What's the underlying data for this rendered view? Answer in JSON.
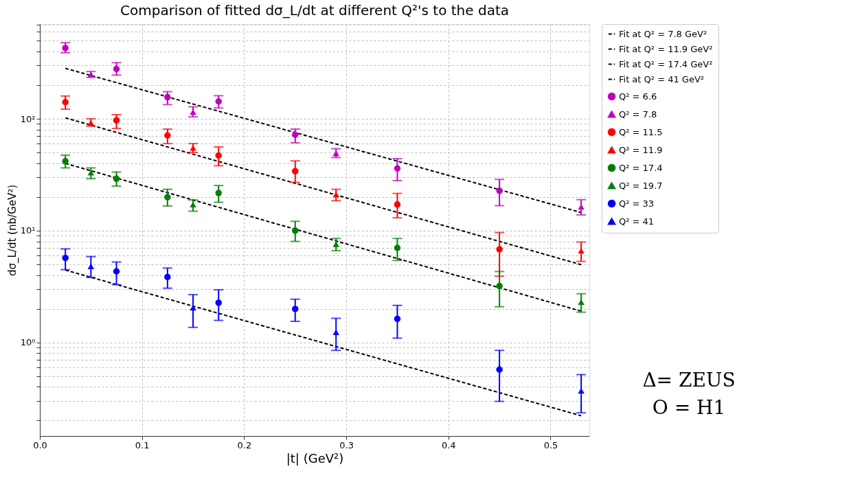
{
  "chart_data": {
    "type": "scatter",
    "title": "Comparison of fitted dσ_L/dt at different Q²'s to the data",
    "xlabel": "|t| (GeV²)",
    "ylabel": "dσ_L/dt (nb/GeV²)",
    "log": "y",
    "grid": true,
    "legend": "right",
    "xlim": [
      0,
      0.538
    ],
    "xticks": [
      {
        "value": 0,
        "label": "0.0"
      },
      {
        "value": 0.1,
        "label": "0.1"
      },
      {
        "value": 0.2,
        "label": "0.2"
      },
      {
        "value": 0.3,
        "label": "0.3"
      },
      {
        "value": 0.4,
        "label": "0.4"
      },
      {
        "value": 0.5,
        "label": "0.5"
      }
    ],
    "ylim": [
      0.145,
      705
    ],
    "yticks": [
      {
        "value": 0.2,
        "label": null
      },
      {
        "value": 0.3,
        "label": null
      },
      {
        "value": 0.4,
        "label": null
      },
      {
        "value": 0.5,
        "label": null
      },
      {
        "value": 0.6,
        "label": null
      },
      {
        "value": 0.7,
        "label": null
      },
      {
        "value": 0.8,
        "label": null
      },
      {
        "value": 0.9,
        "label": null
      },
      {
        "value": 1,
        "label": "10⁰"
      },
      {
        "value": 2,
        "label": null
      },
      {
        "value": 3,
        "label": null
      },
      {
        "value": 4,
        "label": null
      },
      {
        "value": 5,
        "label": null
      },
      {
        "value": 6,
        "label": null
      },
      {
        "value": 7,
        "label": null
      },
      {
        "value": 8,
        "label": null
      },
      {
        "value": 9,
        "label": null
      },
      {
        "value": 10,
        "label": "10¹"
      },
      {
        "value": 20,
        "label": null
      },
      {
        "value": 30,
        "label": null
      },
      {
        "value": 40,
        "label": null
      },
      {
        "value": 50,
        "label": null
      },
      {
        "value": 60,
        "label": null
      },
      {
        "value": 70,
        "label": null
      },
      {
        "value": 80,
        "label": null
      },
      {
        "value": 90,
        "label": null
      },
      {
        "value": 100,
        "label": "10²"
      },
      {
        "value": 200,
        "label": null
      },
      {
        "value": 300,
        "label": null
      },
      {
        "value": 400,
        "label": null
      },
      {
        "value": 500,
        "label": null
      },
      {
        "value": 600,
        "label": null
      },
      {
        "value": 700,
        "label": null
      }
    ],
    "annotations": [
      "Δ= ZEUS",
      "O = H1"
    ],
    "series": [
      {
        "name": "Fit at Q² = 7.8 GeV²",
        "type": "line",
        "line_style": "dashed",
        "color": "#000000",
        "x": [
          0.025,
          0.53
        ],
        "values": [
          283,
          14.5
        ]
      },
      {
        "name": "Fit at Q² = 11.9 GeV²",
        "type": "line",
        "line_style": "dashed",
        "color": "#000000",
        "x": [
          0.025,
          0.53
        ],
        "values": [
          102,
          4.95
        ]
      },
      {
        "name": "Fit at Q² = 17.4 GeV²",
        "type": "line",
        "line_style": "dashed",
        "color": "#000000",
        "x": [
          0.025,
          0.53
        ],
        "values": [
          39.9,
          1.9
        ]
      },
      {
        "name": "Fit at Q² = 41 GeV²",
        "type": "line",
        "line_style": "dashed",
        "color": "#000000",
        "x": [
          0.025,
          0.53
        ],
        "values": [
          4.43,
          0.22
        ]
      },
      {
        "name": "Q² = 6.6",
        "marker": "circle",
        "color": "#bf00bf",
        "x": [
          0.025,
          0.075,
          0.125,
          0.175,
          0.25,
          0.35,
          0.45
        ],
        "values": [
          430,
          279,
          156,
          143,
          72,
          36,
          22.7
        ],
        "errors": [
          [
            390,
            480
          ],
          [
            246,
            318
          ],
          [
            134,
            175
          ],
          [
            125,
            161
          ],
          [
            61,
            81
          ],
          [
            28,
            44
          ],
          [
            16.7,
            28.7
          ]
        ]
      },
      {
        "name": "Q² = 7.8",
        "marker": "triangle",
        "color": "#bf00bf",
        "x": [
          0.05,
          0.15,
          0.29,
          0.53
        ],
        "values": [
          250,
          115,
          49,
          16.3
        ],
        "errors": [
          [
            235,
            265
          ],
          [
            104,
            128
          ],
          [
            45,
            54
          ],
          [
            13.8,
            18.9
          ]
        ]
      },
      {
        "name": "Q² = 11.5",
        "marker": "circle",
        "color": "#ff0000",
        "x": [
          0.025,
          0.075,
          0.125,
          0.175,
          0.25,
          0.35,
          0.45
        ],
        "values": [
          141,
          97,
          71,
          47,
          34,
          17.1,
          6.8
        ],
        "errors": [
          [
            122,
            160
          ],
          [
            82,
            109
          ],
          [
            60,
            81
          ],
          [
            38,
            56
          ],
          [
            27,
            42
          ],
          [
            13,
            21.5
          ],
          [
            3.9,
            9.6
          ]
        ]
      },
      {
        "name": "Q² = 11.9",
        "marker": "triangle",
        "color": "#ff0000",
        "x": [
          0.05,
          0.15,
          0.29,
          0.53
        ],
        "values": [
          92,
          55,
          21,
          6.6
        ],
        "errors": [
          [
            86,
            100
          ],
          [
            50,
            60
          ],
          [
            18.5,
            23.4
          ],
          [
            5.3,
            7.9
          ]
        ]
      },
      {
        "name": "Q² = 17.4",
        "marker": "circle",
        "color": "#008000",
        "x": [
          0.025,
          0.075,
          0.125,
          0.175,
          0.25,
          0.35,
          0.45
        ],
        "values": [
          41.7,
          29.1,
          19.9,
          21.7,
          10,
          7,
          3.19
        ],
        "errors": [
          [
            36.4,
            47.3
          ],
          [
            25,
            33.4
          ],
          [
            16.6,
            23.4
          ],
          [
            17.9,
            25.3
          ],
          [
            8,
            12.1
          ],
          [
            5.4,
            8.5
          ],
          [
            2.08,
            4.3
          ]
        ]
      },
      {
        "name": "Q² = 19.7",
        "marker": "triangle",
        "color": "#008000",
        "x": [
          0.05,
          0.15,
          0.29,
          0.53
        ],
        "values": [
          33,
          17.1,
          7.55,
          2.29
        ],
        "errors": [
          [
            29.1,
            36.4
          ],
          [
            14.9,
            18.8
          ],
          [
            6.6,
            8.5
          ],
          [
            1.86,
            2.72
          ]
        ]
      },
      {
        "name": "Q² = 33",
        "marker": "circle",
        "color": "#0000ff",
        "x": [
          0.025,
          0.075,
          0.125,
          0.175,
          0.25,
          0.35,
          0.45
        ],
        "values": [
          5.69,
          4.31,
          3.84,
          2.26,
          1.99,
          1.62,
          0.57
        ],
        "errors": [
          [
            4.47,
            6.85
          ],
          [
            3.28,
            5.23
          ],
          [
            3.05,
            4.62
          ],
          [
            1.57,
            2.95
          ],
          [
            1.54,
            2.43
          ],
          [
            1.09,
            2.14
          ],
          [
            0.296,
            0.847
          ]
        ]
      },
      {
        "name": "Q² = 41",
        "marker": "triangle",
        "color": "#0000ff",
        "x": [
          0.05,
          0.15,
          0.29,
          0.53
        ],
        "values": [
          4.79,
          2.04,
          1.23,
          0.368
        ],
        "errors": [
          [
            3.8,
            5.85
          ],
          [
            1.36,
            2.67
          ],
          [
            0.847,
            1.64
          ],
          [
            0.234,
            0.514
          ]
        ]
      }
    ]
  }
}
